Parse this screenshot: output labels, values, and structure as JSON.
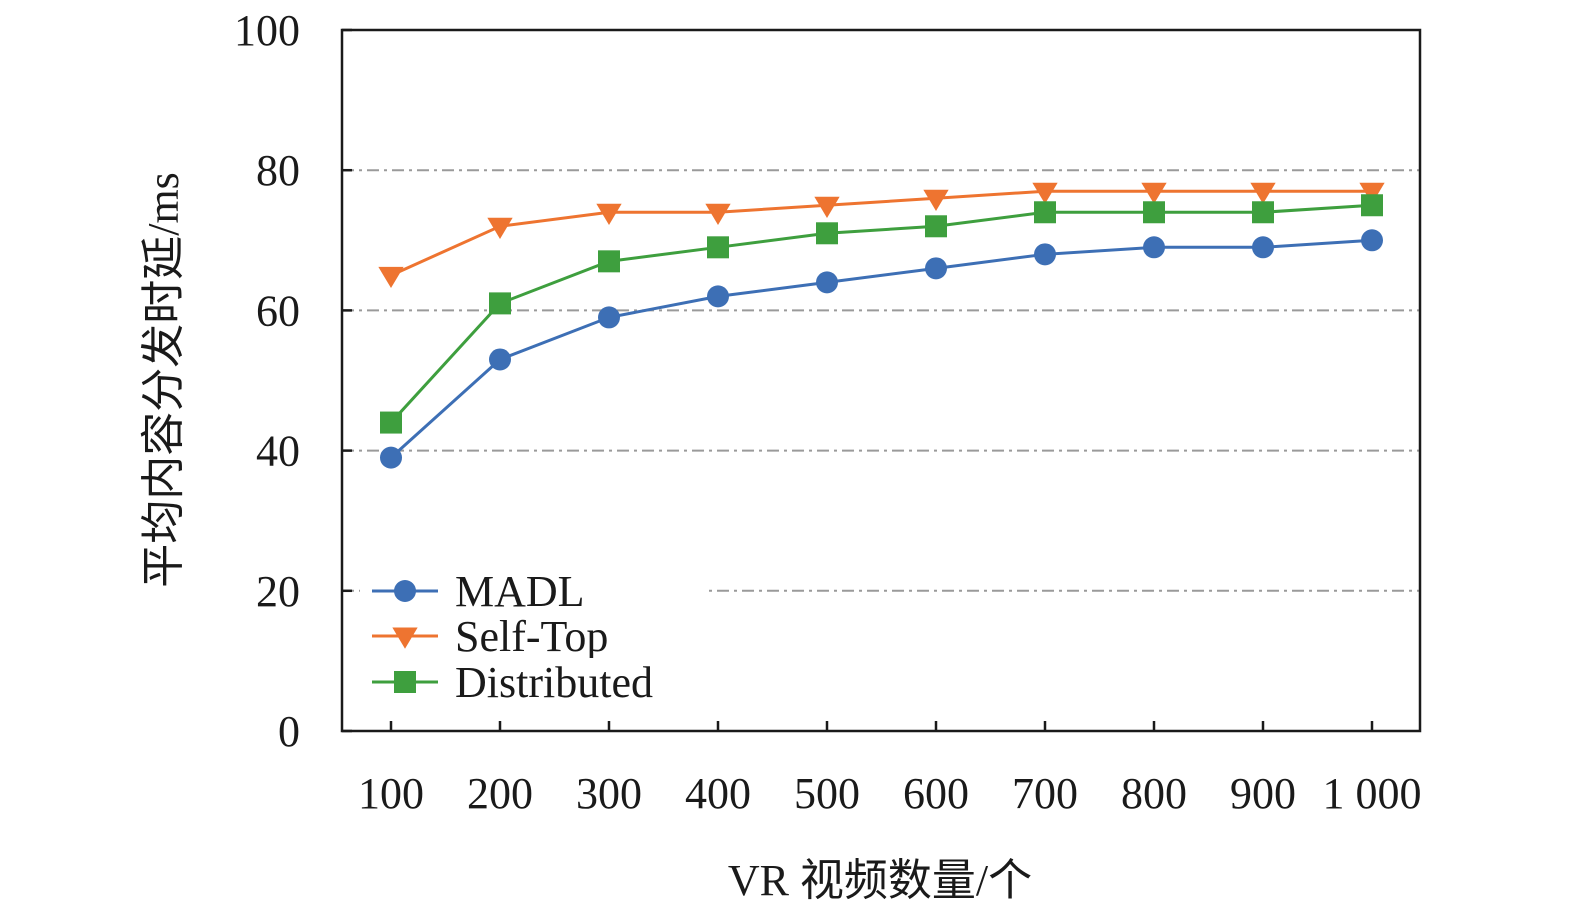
{
  "chart_data": {
    "type": "line",
    "title": "",
    "xlabel": "VR 视频数量/个",
    "ylabel": "平均内容分发时延/ms",
    "x": [
      100,
      200,
      300,
      400,
      500,
      600,
      700,
      800,
      900,
      1000
    ],
    "x_tick_labels": [
      "100",
      "200",
      "300",
      "400",
      "500",
      "600",
      "700",
      "800",
      "900",
      "1 000"
    ],
    "ylim": [
      0,
      100
    ],
    "y_ticks": [
      0,
      20,
      40,
      60,
      80,
      100
    ],
    "y_tick_labels": [
      "0",
      "20",
      "40",
      "60",
      "80",
      "100"
    ],
    "grid": "horizontal dash-dot",
    "legend_position": "bottom-left",
    "series": [
      {
        "name": "MADL",
        "marker": "circle",
        "color": "#3d6fb5",
        "values": [
          39,
          53,
          59,
          62,
          64,
          66,
          68,
          69,
          69,
          70
        ]
      },
      {
        "name": "Self-Top",
        "marker": "triangle-down",
        "color": "#ee7430",
        "values": [
          65,
          72,
          74,
          74,
          75,
          76,
          77,
          77,
          77,
          77
        ]
      },
      {
        "name": "Distributed",
        "marker": "square",
        "color": "#3e9f3e",
        "values": [
          44,
          61,
          67,
          69,
          71,
          72,
          74,
          74,
          74,
          75
        ]
      }
    ]
  }
}
